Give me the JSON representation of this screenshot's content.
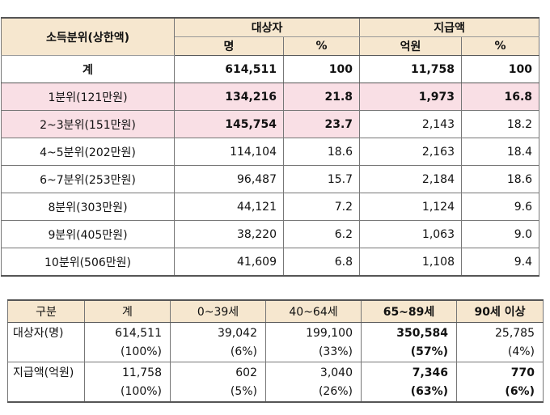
{
  "income_table": {
    "header": {
      "col_group": "소득분위(상한액)",
      "target_group": "대상자",
      "amount_group": "지급액",
      "target_unit": "명",
      "target_pct": "%",
      "amount_unit": "억원",
      "amount_pct": "%"
    },
    "rows": [
      {
        "label": "계",
        "count": "614,511",
        "count_pct": "100",
        "amount": "11,758",
        "amount_pct": "100"
      },
      {
        "label": "1분위(121만원)",
        "count": "134,216",
        "count_pct": "21.8",
        "amount": "1,973",
        "amount_pct": "16.8"
      },
      {
        "label": "2~3분위(151만원)",
        "count": "145,754",
        "count_pct": "23.7",
        "amount": "2,143",
        "amount_pct": "18.2"
      },
      {
        "label": "4~5분위(202만원)",
        "count": "114,104",
        "count_pct": "18.6",
        "amount": "2,163",
        "amount_pct": "18.4"
      },
      {
        "label": "6~7분위(253만원)",
        "count": "96,487",
        "count_pct": "15.7",
        "amount": "2,184",
        "amount_pct": "18.6"
      },
      {
        "label": "8분위(303만원)",
        "count": "44,121",
        "count_pct": "7.2",
        "amount": "1,124",
        "amount_pct": "9.6"
      },
      {
        "label": "9분위(405만원)",
        "count": "38,220",
        "count_pct": "6.2",
        "amount": "1,063",
        "amount_pct": "9.0"
      },
      {
        "label": "10분위(506만원)",
        "count": "41,609",
        "count_pct": "6.8",
        "amount": "1,108",
        "amount_pct": "9.4"
      }
    ],
    "highlight_color": "#f9dfe5",
    "header_color": "#f6e7cf"
  },
  "age_table": {
    "headers": [
      "구분",
      "계",
      "0~39세",
      "40~64세",
      "65~89세",
      "90세 이상"
    ],
    "rows": [
      {
        "label": "대상자(명)",
        "values": [
          "614,511",
          "39,042",
          "199,100",
          "350,584",
          "25,785"
        ],
        "pcts": [
          "(100%)",
          "(6%)",
          "(33%)",
          "(57%)",
          "(4%)"
        ]
      },
      {
        "label": "지급액(억원)",
        "values": [
          "11,758",
          "602",
          "3,040",
          "7,346",
          "770"
        ],
        "pcts": [
          "(100%)",
          "(5%)",
          "(26%)",
          "(63%)",
          "(6%)"
        ]
      }
    ]
  }
}
